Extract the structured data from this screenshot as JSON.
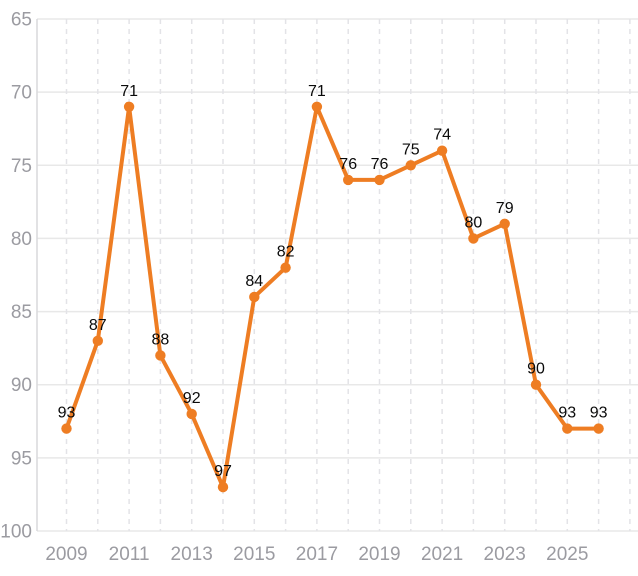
{
  "chart_data": {
    "type": "line",
    "title": "",
    "xlabel": "",
    "ylabel": "",
    "x": [
      2009,
      2010,
      2011,
      2012,
      2013,
      2014,
      2015,
      2016,
      2017,
      2018,
      2019,
      2020,
      2021,
      2022,
      2023,
      2024,
      2025,
      2026
    ],
    "values": [
      93,
      87,
      71,
      88,
      92,
      97,
      84,
      82,
      71,
      76,
      76,
      75,
      74,
      80,
      79,
      90,
      93,
      93
    ],
    "point_labels": [
      "93",
      "87",
      "71",
      "88",
      "92",
      "97",
      "84",
      "82",
      "71",
      "76",
      "76",
      "75",
      "74",
      "80",
      "79",
      "90",
      "93",
      "93"
    ],
    "y_ticks": [
      65,
      70,
      75,
      80,
      85,
      90,
      95,
      100
    ],
    "y_tick_labels": [
      "65",
      "70",
      "75",
      "80",
      "85",
      "90",
      "95",
      "100"
    ],
    "x_tick_labeled_years": [
      2009,
      2011,
      2013,
      2015,
      2017,
      2019,
      2021,
      2023,
      2025
    ],
    "x_grid_years": [
      2009,
      2010,
      2011,
      2012,
      2013,
      2014,
      2015,
      2016,
      2017,
      2018,
      2019,
      2020,
      2021,
      2022,
      2023,
      2024,
      2025,
      2026,
      2027
    ],
    "ylim": [
      65,
      100
    ],
    "y_axis_inverted": true,
    "legend": "none",
    "grid": {
      "horizontal": "solid",
      "vertical": "dashed"
    },
    "colors": {
      "line": "#ee7d23",
      "marker": "#ee7d23",
      "point_label": "#0a0a0a",
      "axis_text": "#9b9ba1",
      "grid_solid": "#e8e8e8",
      "grid_dashed": "#e3e3e7",
      "axis_line": "#d9d9dc",
      "background": "#ffffff"
    }
  }
}
